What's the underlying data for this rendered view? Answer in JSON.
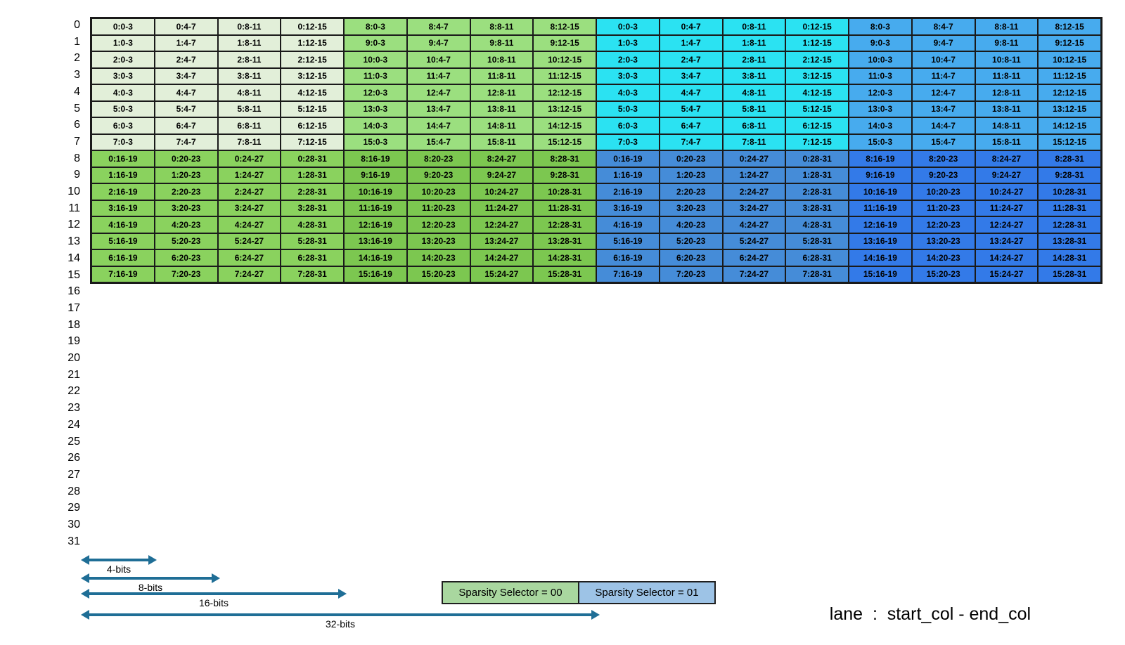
{
  "colors": {
    "q_top_c0": "#E2EFD9",
    "q_top_c1": "#9BDF7F",
    "q_top_c2": "#2BE2F2",
    "q_top_c3": "#47ABEE",
    "q_bot_c0": "#8AD25E",
    "q_bot_c1": "#7CC750",
    "q_bot_c2": "#458CD8",
    "q_bot_c3": "#337AE8",
    "legend_green": "#A9D79F",
    "legend_blue": "#9DC3E6",
    "arrow": "#1F6E96",
    "border": "#1A1A1A"
  },
  "row_labels": [
    "0",
    "1",
    "2",
    "3",
    "4",
    "5",
    "6",
    "7",
    "8",
    "9",
    "10",
    "11",
    "12",
    "13",
    "14",
    "15",
    "16",
    "17",
    "18",
    "19",
    "20",
    "21",
    "22",
    "23",
    "24",
    "25",
    "26",
    "27",
    "28",
    "29",
    "30",
    "31"
  ],
  "grid": {
    "rows": [
      [
        "0:0-3",
        "0:4-7",
        "0:8-11",
        "0:12-15",
        "8:0-3",
        "8:4-7",
        "8:8-11",
        "8:12-15",
        "0:0-3",
        "0:4-7",
        "0:8-11",
        "0:12-15",
        "8:0-3",
        "8:4-7",
        "8:8-11",
        "8:12-15"
      ],
      [
        "1:0-3",
        "1:4-7",
        "1:8-11",
        "1:12-15",
        "9:0-3",
        "9:4-7",
        "9:8-11",
        "9:12-15",
        "1:0-3",
        "1:4-7",
        "1:8-11",
        "1:12-15",
        "9:0-3",
        "9:4-7",
        "9:8-11",
        "9:12-15"
      ],
      [
        "2:0-3",
        "2:4-7",
        "2:8-11",
        "2:12-15",
        "10:0-3",
        "10:4-7",
        "10:8-11",
        "10:12-15",
        "2:0-3",
        "2:4-7",
        "2:8-11",
        "2:12-15",
        "10:0-3",
        "10:4-7",
        "10:8-11",
        "10:12-15"
      ],
      [
        "3:0-3",
        "3:4-7",
        "3:8-11",
        "3:12-15",
        "11:0-3",
        "11:4-7",
        "11:8-11",
        "11:12-15",
        "3:0-3",
        "3:4-7",
        "3:8-11",
        "3:12-15",
        "11:0-3",
        "11:4-7",
        "11:8-11",
        "11:12-15"
      ],
      [
        "4:0-3",
        "4:4-7",
        "4:8-11",
        "4:12-15",
        "12:0-3",
        "12:4-7",
        "12:8-11",
        "12:12-15",
        "4:0-3",
        "4:4-7",
        "4:8-11",
        "4:12-15",
        "12:0-3",
        "12:4-7",
        "12:8-11",
        "12:12-15"
      ],
      [
        "5:0-3",
        "5:4-7",
        "5:8-11",
        "5:12-15",
        "13:0-3",
        "13:4-7",
        "13:8-11",
        "13:12-15",
        "5:0-3",
        "5:4-7",
        "5:8-11",
        "5:12-15",
        "13:0-3",
        "13:4-7",
        "13:8-11",
        "13:12-15"
      ],
      [
        "6:0-3",
        "6:4-7",
        "6:8-11",
        "6:12-15",
        "14:0-3",
        "14:4-7",
        "14:8-11",
        "14:12-15",
        "6:0-3",
        "6:4-7",
        "6:8-11",
        "6:12-15",
        "14:0-3",
        "14:4-7",
        "14:8-11",
        "14:12-15"
      ],
      [
        "7:0-3",
        "7:4-7",
        "7:8-11",
        "7:12-15",
        "15:0-3",
        "15:4-7",
        "15:8-11",
        "15:12-15",
        "7:0-3",
        "7:4-7",
        "7:8-11",
        "7:12-15",
        "15:0-3",
        "15:4-7",
        "15:8-11",
        "15:12-15"
      ],
      [
        "0:16-19",
        "0:20-23",
        "0:24-27",
        "0:28-31",
        "8:16-19",
        "8:20-23",
        "8:24-27",
        "8:28-31",
        "0:16-19",
        "0:20-23",
        "0:24-27",
        "0:28-31",
        "8:16-19",
        "8:20-23",
        "8:24-27",
        "8:28-31"
      ],
      [
        "1:16-19",
        "1:20-23",
        "1:24-27",
        "1:28-31",
        "9:16-19",
        "9:20-23",
        "9:24-27",
        "9:28-31",
        "1:16-19",
        "1:20-23",
        "1:24-27",
        "1:28-31",
        "9:16-19",
        "9:20-23",
        "9:24-27",
        "9:28-31"
      ],
      [
        "2:16-19",
        "2:20-23",
        "2:24-27",
        "2:28-31",
        "10:16-19",
        "10:20-23",
        "10:24-27",
        "10:28-31",
        "2:16-19",
        "2:20-23",
        "2:24-27",
        "2:28-31",
        "10:16-19",
        "10:20-23",
        "10:24-27",
        "10:28-31"
      ],
      [
        "3:16-19",
        "3:20-23",
        "3:24-27",
        "3:28-31",
        "11:16-19",
        "11:20-23",
        "11:24-27",
        "11:28-31",
        "3:16-19",
        "3:20-23",
        "3:24-27",
        "3:28-31",
        "11:16-19",
        "11:20-23",
        "11:24-27",
        "11:28-31"
      ],
      [
        "4:16-19",
        "4:20-23",
        "4:24-27",
        "4:28-31",
        "12:16-19",
        "12:20-23",
        "12:24-27",
        "12:28-31",
        "4:16-19",
        "4:20-23",
        "4:24-27",
        "4:28-31",
        "12:16-19",
        "12:20-23",
        "12:24-27",
        "12:28-31"
      ],
      [
        "5:16-19",
        "5:20-23",
        "5:24-27",
        "5:28-31",
        "13:16-19",
        "13:20-23",
        "13:24-27",
        "13:28-31",
        "5:16-19",
        "5:20-23",
        "5:24-27",
        "5:28-31",
        "13:16-19",
        "13:20-23",
        "13:24-27",
        "13:28-31"
      ],
      [
        "6:16-19",
        "6:20-23",
        "6:24-27",
        "6:28-31",
        "14:16-19",
        "14:20-23",
        "14:24-27",
        "14:28-31",
        "6:16-19",
        "6:20-23",
        "6:24-27",
        "6:28-31",
        "14:16-19",
        "14:20-23",
        "14:24-27",
        "14:28-31"
      ],
      [
        "7:16-19",
        "7:20-23",
        "7:24-27",
        "7:28-31",
        "15:16-19",
        "15:20-23",
        "15:24-27",
        "15:28-31",
        "7:16-19",
        "7:20-23",
        "7:24-27",
        "7:28-31",
        "15:16-19",
        "15:20-23",
        "15:24-27",
        "15:28-31"
      ]
    ]
  },
  "measures": [
    {
      "label": "4-bits",
      "cols": 1
    },
    {
      "label": "8-bits",
      "cols": 2
    },
    {
      "label": "16-bits",
      "cols": 4
    },
    {
      "label": "32-bits",
      "cols": 8
    }
  ],
  "legend": [
    {
      "label": "Sparsity Selector = 00"
    },
    {
      "label": "Sparsity Selector = 01"
    }
  ],
  "caption": {
    "text": "lane  :  start_col - end_col"
  }
}
